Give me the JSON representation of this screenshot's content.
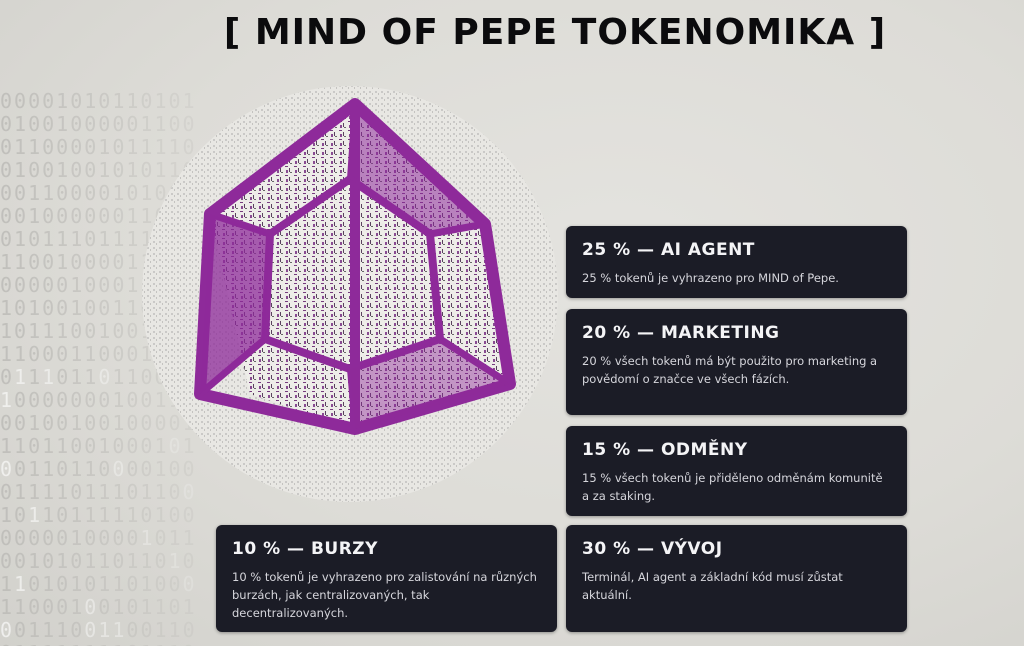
{
  "page": {
    "title": "[ MIND OF PEPE TOKENOMIKA ]",
    "accent_color": "#8e2a9a",
    "card_color": "#1b1c26"
  },
  "allocations": [
    {
      "heading": "25 % — AI AGENT",
      "text": "25 % tokenů je vyhrazeno pro MIND of Pepe."
    },
    {
      "heading": "20 % — MARKETING",
      "text": "20 % všech tokenů má být použito pro marketing a povědomí o značce ve všech fázích."
    },
    {
      "heading": "15 % — ODMĚNY",
      "text": "15 % všech tokenů je přiděleno odměnám komunitě a za staking."
    },
    {
      "heading": "10 % — BURZY",
      "text": "10 % tokenů je vyhrazeno pro zalistování na různých burzách, jak centralizovaných, tak decentralizovaných."
    },
    {
      "heading": "30 % — VÝVOJ",
      "text": "Terminál, AI agent a základní kód musí zůstat aktuální."
    }
  ],
  "artwork": {
    "icon": "tesseract-cube-icon"
  }
}
